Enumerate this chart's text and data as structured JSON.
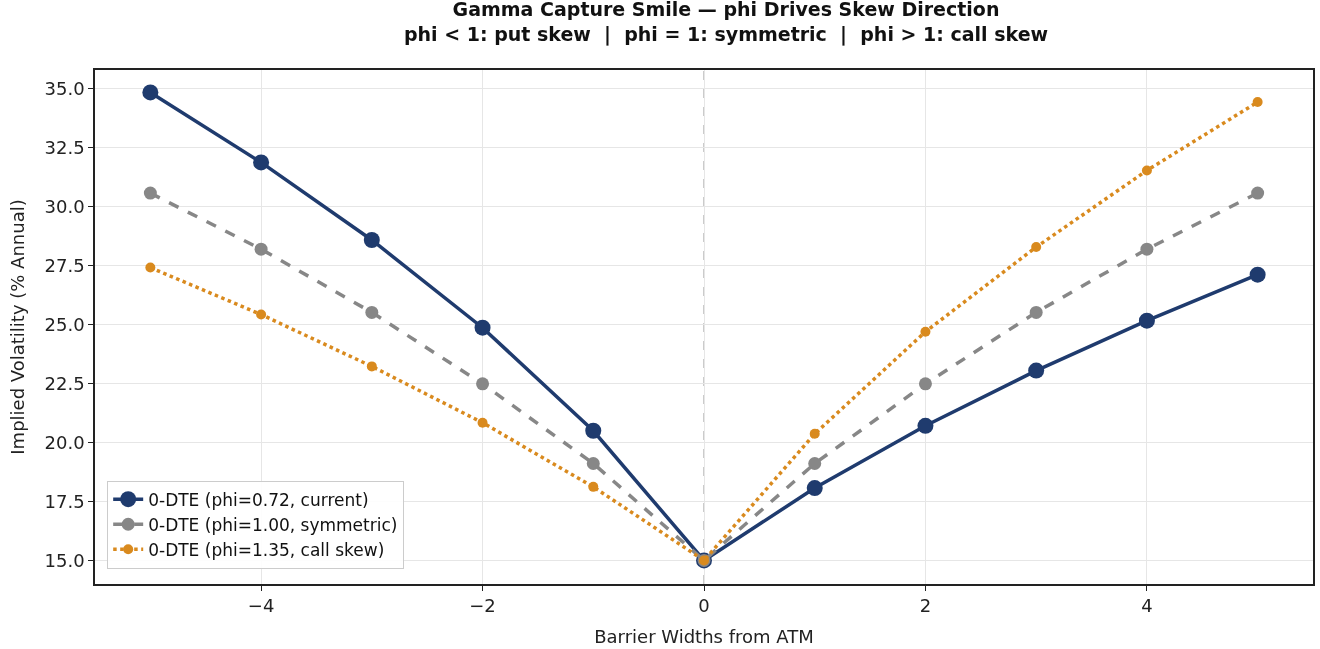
{
  "chart_data": {
    "type": "line",
    "title": "Gamma Capture Smile — phi Drives Skew Direction",
    "subtitle": "phi < 1: put skew  |  phi = 1: symmetric  |  phi > 1: call skew",
    "xlabel": "Barrier Widths from ATM",
    "ylabel": "Implied Volatility (% Annual)",
    "x": [
      -5,
      -4,
      -3,
      -2,
      -1,
      0,
      1,
      2,
      3,
      4,
      5
    ],
    "series": [
      {
        "name": "0-DTE (phi=0.72, current)",
        "color": "#1f3b6e",
        "line_style": "solid",
        "values": [
          34.85,
          31.88,
          28.59,
          24.87,
          20.5,
          15.0,
          18.07,
          20.71,
          23.05,
          25.17,
          27.12
        ]
      },
      {
        "name": "0-DTE (phi=1.00, symmetric)",
        "color": "#878787",
        "line_style": "dashed",
        "values": [
          30.58,
          28.2,
          25.52,
          22.49,
          19.11,
          15.0,
          19.11,
          22.49,
          25.52,
          28.2,
          30.58
        ]
      },
      {
        "name": "0-DTE (phi=1.35, call skew)",
        "color": "#d98a1e",
        "line_style": "dotted",
        "values": [
          27.42,
          25.43,
          23.23,
          20.84,
          18.12,
          15.0,
          20.37,
          24.7,
          28.29,
          31.54,
          34.44
        ]
      }
    ],
    "xlim": [
      -5.5,
      5.5
    ],
    "xticks": [
      {
        "value": -4,
        "label": "−4"
      },
      {
        "value": -2,
        "label": "−2"
      },
      0,
      2,
      4
    ],
    "ylim": [
      14.0,
      35.8
    ],
    "yticks": [
      {
        "value": 15,
        "label": "15.0"
      },
      17.5,
      {
        "value": 20,
        "label": "20.0"
      },
      22.5,
      {
        "value": 25,
        "label": "25.0"
      },
      27.5,
      {
        "value": 30,
        "label": "30.0"
      },
      32.5,
      {
        "value": 35,
        "label": "35.0"
      }
    ],
    "ref_lines": [
      {
        "axis": "x",
        "value": 0,
        "color": "#b0b0b0",
        "line_style": "dashed"
      }
    ],
    "grid": true,
    "legend": "bottom left",
    "marker": "circle"
  }
}
